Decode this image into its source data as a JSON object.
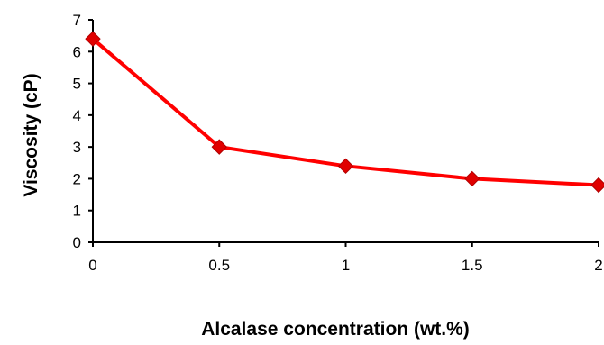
{
  "chart_data": {
    "type": "line",
    "title": "",
    "xlabel": "Alcalase concentration (wt.%)",
    "ylabel": "Viscosity (cP)",
    "xlim": [
      0,
      2
    ],
    "ylim": [
      0,
      7
    ],
    "xticks": [
      0,
      0.5,
      1,
      1.5,
      2
    ],
    "xtick_labels": [
      "0",
      "0.5",
      "1",
      "1.5",
      "2"
    ],
    "yticks": [
      0,
      1,
      2,
      3,
      4,
      5,
      6,
      7
    ],
    "ytick_labels": [
      "0",
      "1",
      "2",
      "3",
      "4",
      "5",
      "6",
      "7"
    ],
    "grid": false,
    "legend": "none",
    "series": [
      {
        "x": [
          0,
          0.5,
          1,
          1.5,
          2
        ],
        "y": [
          6.4,
          3.0,
          2.4,
          2.0,
          1.8
        ],
        "color": "#ff0000",
        "marker_color": "#e00000",
        "marker": "diamond"
      }
    ]
  }
}
